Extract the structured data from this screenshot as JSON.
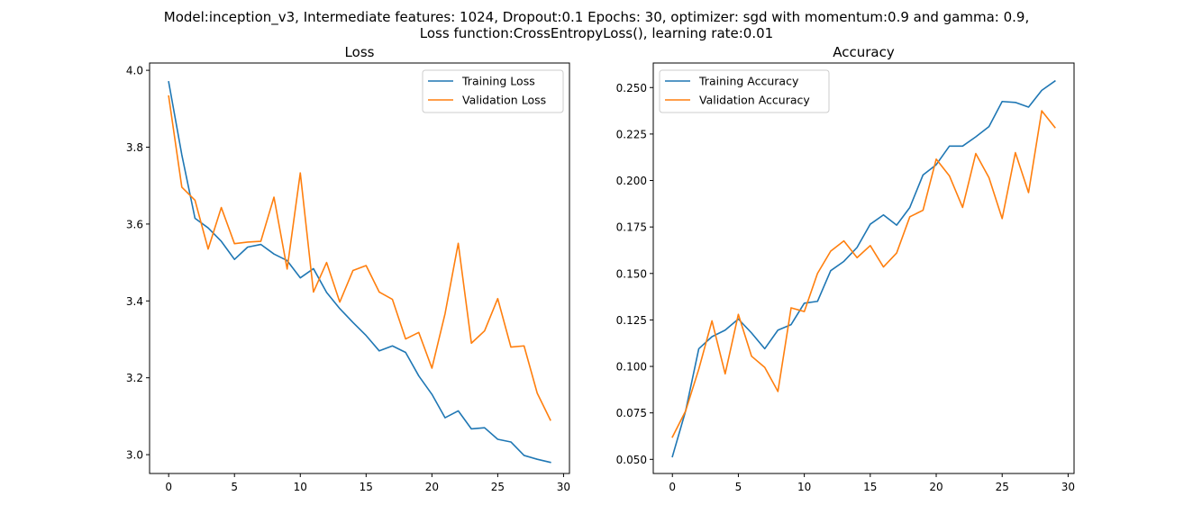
{
  "figure": {
    "title_line1": "Model:inception_v3, Intermediate features: 1024, Dropout:0.1 Epochs: 30, optimizer: sgd with momentum:0.9 and gamma: 0.9,",
    "title_line2": "Loss function:CrossEntropyLoss(), learning rate:0.01"
  },
  "chart_data": [
    {
      "type": "line",
      "title": "Loss",
      "xlabel": "",
      "ylabel": "",
      "x": [
        0,
        1,
        2,
        3,
        4,
        5,
        6,
        7,
        8,
        9,
        10,
        11,
        12,
        13,
        14,
        15,
        16,
        17,
        18,
        19,
        20,
        21,
        22,
        23,
        24,
        25,
        26,
        27,
        28,
        29
      ],
      "xlim": [
        -1.45,
        30.45
      ],
      "ylim": [
        2.951,
        4.019
      ],
      "xticks": [
        0,
        5,
        10,
        15,
        20,
        25,
        30
      ],
      "xtick_labels": [
        "0",
        "5",
        "10",
        "15",
        "20",
        "25",
        "30"
      ],
      "yticks": [
        3.0,
        3.2,
        3.4,
        3.6,
        3.8,
        4.0
      ],
      "ytick_labels": [
        "3.0",
        "3.2",
        "3.4",
        "3.6",
        "3.8",
        "4.0"
      ],
      "grid": false,
      "legend_position": "upper right",
      "series": [
        {
          "name": "Training Loss",
          "color": "#1f77b4",
          "values": [
            3.97,
            3.78,
            3.615,
            3.59,
            3.555,
            3.508,
            3.54,
            3.547,
            3.522,
            3.505,
            3.46,
            3.484,
            3.422,
            3.38,
            3.344,
            3.31,
            3.27,
            3.283,
            3.266,
            3.205,
            3.157,
            3.096,
            3.114,
            3.067,
            3.07,
            3.04,
            3.033,
            2.998,
            2.988,
            2.98
          ]
        },
        {
          "name": "Validation Loss",
          "color": "#ff7f0e",
          "values": [
            3.933,
            3.696,
            3.662,
            3.535,
            3.643,
            3.549,
            3.553,
            3.555,
            3.67,
            3.483,
            3.733,
            3.423,
            3.5,
            3.397,
            3.479,
            3.492,
            3.423,
            3.404,
            3.301,
            3.318,
            3.225,
            3.367,
            3.55,
            3.29,
            3.322,
            3.406,
            3.28,
            3.283,
            3.16,
            3.09
          ]
        }
      ]
    },
    {
      "type": "line",
      "title": "Accuracy",
      "xlabel": "",
      "ylabel": "",
      "x": [
        0,
        1,
        2,
        3,
        4,
        5,
        6,
        7,
        8,
        9,
        10,
        11,
        12,
        13,
        14,
        15,
        16,
        17,
        18,
        19,
        20,
        21,
        22,
        23,
        24,
        25,
        26,
        27,
        28,
        29
      ],
      "xlim": [
        -1.45,
        30.45
      ],
      "ylim": [
        0.0424,
        0.2632
      ],
      "xticks": [
        0,
        5,
        10,
        15,
        20,
        25,
        30
      ],
      "xtick_labels": [
        "0",
        "5",
        "10",
        "15",
        "20",
        "25",
        "30"
      ],
      "yticks": [
        0.05,
        0.075,
        0.1,
        0.125,
        0.15,
        0.175,
        0.2,
        0.225,
        0.25
      ],
      "ytick_labels": [
        "0.050",
        "0.075",
        "0.100",
        "0.125",
        "0.150",
        "0.175",
        "0.200",
        "0.225",
        "0.250"
      ],
      "grid": false,
      "legend_position": "upper left",
      "series": [
        {
          "name": "Training Accuracy",
          "color": "#1f77b4",
          "values": [
            0.0515,
            0.076,
            0.1095,
            0.116,
            0.1195,
            0.1255,
            0.118,
            0.1095,
            0.1195,
            0.1225,
            0.134,
            0.135,
            0.1515,
            0.1565,
            0.164,
            0.1765,
            0.1815,
            0.176,
            0.1855,
            0.203,
            0.2085,
            0.2185,
            0.2185,
            0.2235,
            0.229,
            0.2425,
            0.242,
            0.2395,
            0.2485,
            0.2535
          ]
        },
        {
          "name": "Validation Accuracy",
          "color": "#ff7f0e",
          "values": [
            0.062,
            0.076,
            0.0985,
            0.1245,
            0.096,
            0.128,
            0.1055,
            0.0995,
            0.0865,
            0.1315,
            0.1295,
            0.15,
            0.162,
            0.1675,
            0.1585,
            0.165,
            0.1535,
            0.161,
            0.1805,
            0.184,
            0.2115,
            0.2025,
            0.1855,
            0.2145,
            0.2015,
            0.1795,
            0.215,
            0.1935,
            0.2375,
            0.2285
          ]
        }
      ]
    }
  ]
}
